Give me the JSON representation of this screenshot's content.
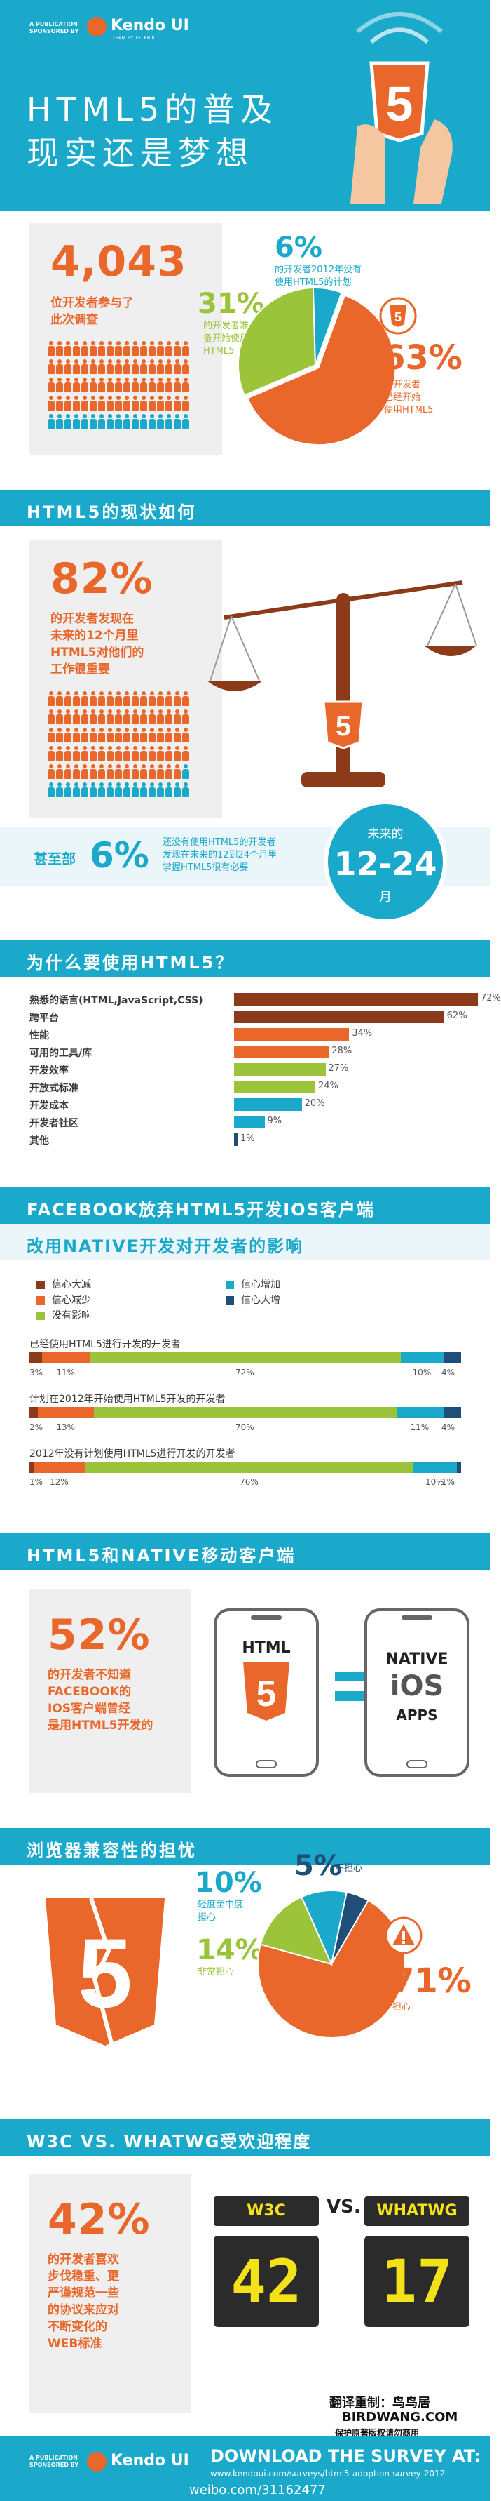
{
  "header": {
    "sponsor_line": "A PUBLICATION SPONSORED BY",
    "brand": "Kendo UI",
    "brand_sub": "TEAM BY TELERIK",
    "title_line1": "HTML5的普及",
    "title_line2": "现实还是梦想"
  },
  "s1": {
    "count": "4,043",
    "count_desc_1": "位开发者参与了",
    "count_desc_2": "此次调查",
    "pct6": "6%",
    "pct6_desc_1": "的开发者2012年没有",
    "pct6_desc_2": "使用HTML5的计划",
    "pct31": "31%",
    "pct31_desc_1": "的开发者准",
    "pct31_desc_2": "备开始使用",
    "pct31_desc_3": "HTML5",
    "pct63": "63%",
    "pct63_desc_1": "的开发者",
    "pct63_desc_2": "已经开始",
    "pct63_desc_3": "使用HTML5"
  },
  "s2": {
    "band": "HTML5的现状如何",
    "pct82": "82%",
    "d1": "的开发者发现在",
    "d2": "未来的12个月里",
    "d3": "HTML5对他们的",
    "d4": "工作很重要",
    "lead": "甚至部",
    "pct6": "6%",
    "d5": "还没有使用HTML5的开发者",
    "d6": "发现在未来的12到24个月里",
    "d7": "掌握HTML5很有必要",
    "future_label": "未来的",
    "future_range": "12-24",
    "future_unit": "月"
  },
  "s3": {
    "band": "为什么要使用HTML5？"
  },
  "s4": {
    "band1": "FACEBOOK放弃HTML5开发IOS客户端",
    "band2": "改用NATIVE开发对开发者的影响",
    "legend": [
      {
        "label": "信心大减",
        "color": "#8b3a1a"
      },
      {
        "label": "信心减少",
        "color": "#e9672a"
      },
      {
        "label": "没有影响",
        "color": "#9cc43a"
      },
      {
        "label": "信心增加",
        "color": "#1aa9cb"
      },
      {
        "label": "信心大增",
        "color": "#1f4e79"
      }
    ]
  },
  "s5": {
    "band": "HTML5和NATIVE移动客户端",
    "pct52": "52%",
    "d1": "的开发者不知道",
    "d2": "FACEBOOK的",
    "d3": "IOS客户端曾经",
    "d4": "是用HTML5开发的",
    "native": "NATIVE",
    "ios": "iOS",
    "apps": "APPS",
    "html": "HTML"
  },
  "s6": {
    "band": "浏览器兼容性的担忧",
    "pct10": "10%",
    "pct10_desc_1": "轻度至中度",
    "pct10_desc_2": "担心",
    "pct5": "5%",
    "pct5_desc": "不担心",
    "pct14": "14%",
    "pct14_desc": "非常担心",
    "pct71": "71%",
    "pct71_desc": "担心"
  },
  "s7": {
    "band": "W3C VS. WHATWG受欢迎程度",
    "pct42": "42%",
    "d1": "的开发者喜欢",
    "d2": "步伐稳重、更",
    "d3": "严谨规范一些",
    "d4": "的协议来应对",
    "d5": "不断变化的",
    "d6": "WEB标准",
    "w3c": "W3C",
    "vs": "VS.",
    "whatwg": "WHATWG",
    "w3c_score": "42",
    "whatwg_score": "17",
    "credit1": "翻译重制：鸟鸟居",
    "credit2": "BIRDWANG.COM",
    "credit3": "保护原著版权请勿商用"
  },
  "footer": {
    "sponsor_line": "A PUBLICATION SPONSORED BY",
    "brand": "Kendo UI",
    "download": "DOWNLOAD THE SURVEY AT:",
    "url": "www.kendoui.com/surveys/html5-adoption-survey-2012",
    "weibo": "weibo.com/31162477"
  },
  "chart_data": [
    {
      "type": "pie",
      "title": "",
      "slices": [
        {
          "label": "已经开始使用HTML5",
          "value": 63,
          "color": "#e9672a"
        },
        {
          "label": "准备开始使用HTML5",
          "value": 31,
          "color": "#9cc43a"
        },
        {
          "label": "2012年没有使用HTML5的计划",
          "value": 6,
          "color": "#1aa9cb"
        }
      ]
    },
    {
      "type": "bar",
      "title": "为什么要使用HTML5？",
      "categories": [
        "熟悉的语言(HTML,JavaScript,CSS)",
        "跨平台",
        "性能",
        "可用的工具/库",
        "开发效率",
        "开放式标准",
        "开发成本",
        "开发者社区",
        "其他"
      ],
      "values": [
        72,
        62,
        34,
        28,
        27,
        24,
        20,
        9,
        1
      ],
      "value_labels": [
        "72%",
        "62%",
        "34%",
        "28%",
        "27%",
        "24%",
        "20%",
        "9%",
        "1%"
      ],
      "colors": [
        "#8b3a1a",
        "#8b3a1a",
        "#e9672a",
        "#e9672a",
        "#9cc43a",
        "#9cc43a",
        "#1aa9cb",
        "#1aa9cb",
        "#1f4e79"
      ],
      "xlim": [
        0,
        72
      ]
    },
    {
      "type": "bar",
      "subtype": "stacked-100",
      "series": [
        "信心大减",
        "信心减少",
        "没有影响",
        "信心增加",
        "信心大增"
      ],
      "rows": [
        {
          "label": "已经使用HTML5进行开发的开发者",
          "values": [
            3,
            11,
            72,
            10,
            4
          ],
          "labels": [
            "3%",
            "11%",
            "72%",
            "10%",
            "4%"
          ]
        },
        {
          "label": "计划在2012年开始使用HTML5开发的开发者",
          "values": [
            2,
            13,
            70,
            11,
            4
          ],
          "labels": [
            "2%",
            "13%",
            "70%",
            "11%",
            "4%"
          ]
        },
        {
          "label": "2012年没有计划使用HTML5进行开发的开发者",
          "values": [
            1,
            12,
            76,
            10,
            1
          ],
          "labels": [
            "1%",
            "12%",
            "76%",
            "10%",
            "1%"
          ]
        }
      ]
    },
    {
      "type": "pie",
      "title": "",
      "slices": [
        {
          "label": "担心",
          "value": 71,
          "color": "#e9672a"
        },
        {
          "label": "非常担心",
          "value": 14,
          "color": "#9cc43a"
        },
        {
          "label": "轻度至中度担心",
          "value": 10,
          "color": "#1aa9cb"
        },
        {
          "label": "不担心",
          "value": 5,
          "color": "#1f4e79"
        }
      ]
    }
  ]
}
